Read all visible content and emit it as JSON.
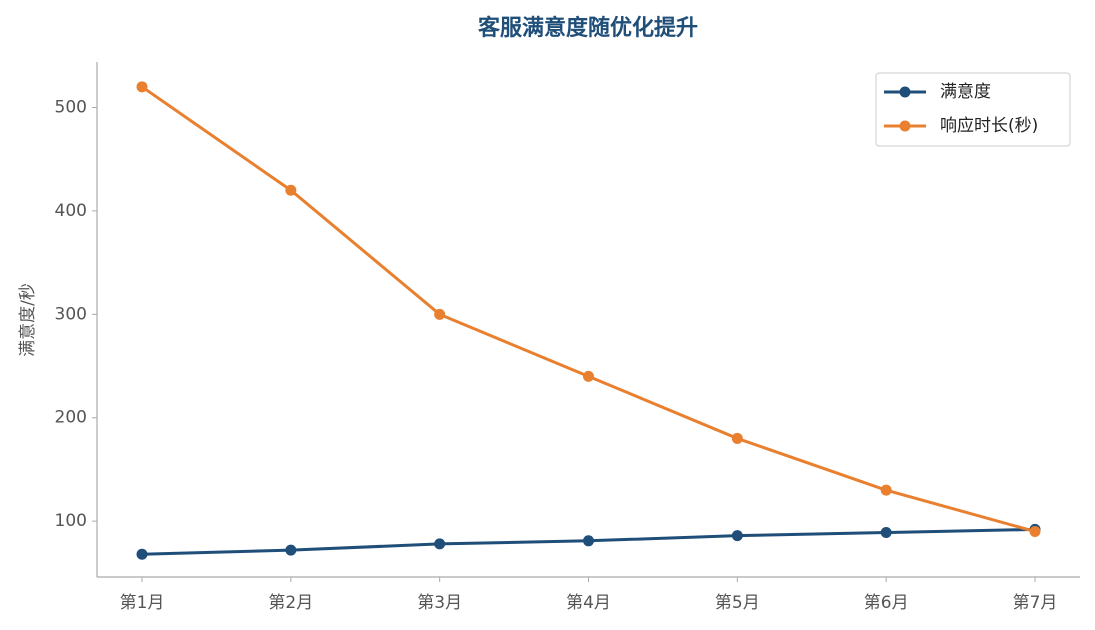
{
  "chart_data": {
    "type": "line",
    "title": "客服满意度随优化提升",
    "y_label": "满意度/秒",
    "categories": [
      "第1月",
      "第2月",
      "第3月",
      "第4月",
      "第5月",
      "第6月",
      "第7月"
    ],
    "series": [
      {
        "name": "满意度",
        "color": "#1f4e79",
        "values": [
          68,
          72,
          78,
          81,
          86,
          89,
          92
        ]
      },
      {
        "name": "响应时长(秒)",
        "color": "#e8802f",
        "values": [
          520,
          420,
          300,
          240,
          180,
          130,
          90
        ]
      }
    ],
    "ylim": [
      46,
      544
    ],
    "yticks": [
      100,
      200,
      300,
      400,
      500
    ],
    "grid": false,
    "legend": "upper right"
  }
}
